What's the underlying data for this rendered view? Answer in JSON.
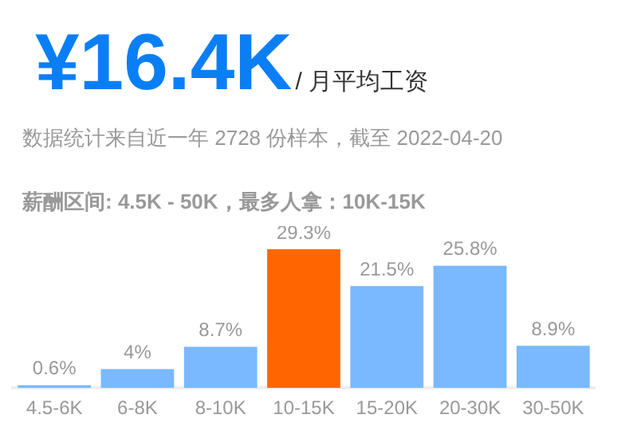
{
  "chart_data": {
    "type": "bar",
    "title": "¥16.4K",
    "subtitle": "/ 月平均工资",
    "annotations": [
      "数据统计来自近一年 2728 份样本，截至 2022-04-20",
      "薪酬区间: 4.5K - 50K，最多人拿：10K-15K"
    ],
    "categories": [
      "4.5-6K",
      "6-8K",
      "8-10K",
      "10-15K",
      "15-20K",
      "20-30K",
      "30-50K"
    ],
    "values": [
      0.6,
      4,
      8.7,
      29.3,
      21.5,
      25.8,
      8.9
    ],
    "colors": [
      "#7ab8ff",
      "#7ab8ff",
      "#7ab8ff",
      "#ff6600",
      "#7ab8ff",
      "#7ab8ff",
      "#7ab8ff"
    ],
    "value_labels": [
      "0.6%",
      "4%",
      "8.7%",
      "29.3%",
      "21.5%",
      "25.8%",
      "8.9%"
    ],
    "grid": false,
    "legend": false
  }
}
